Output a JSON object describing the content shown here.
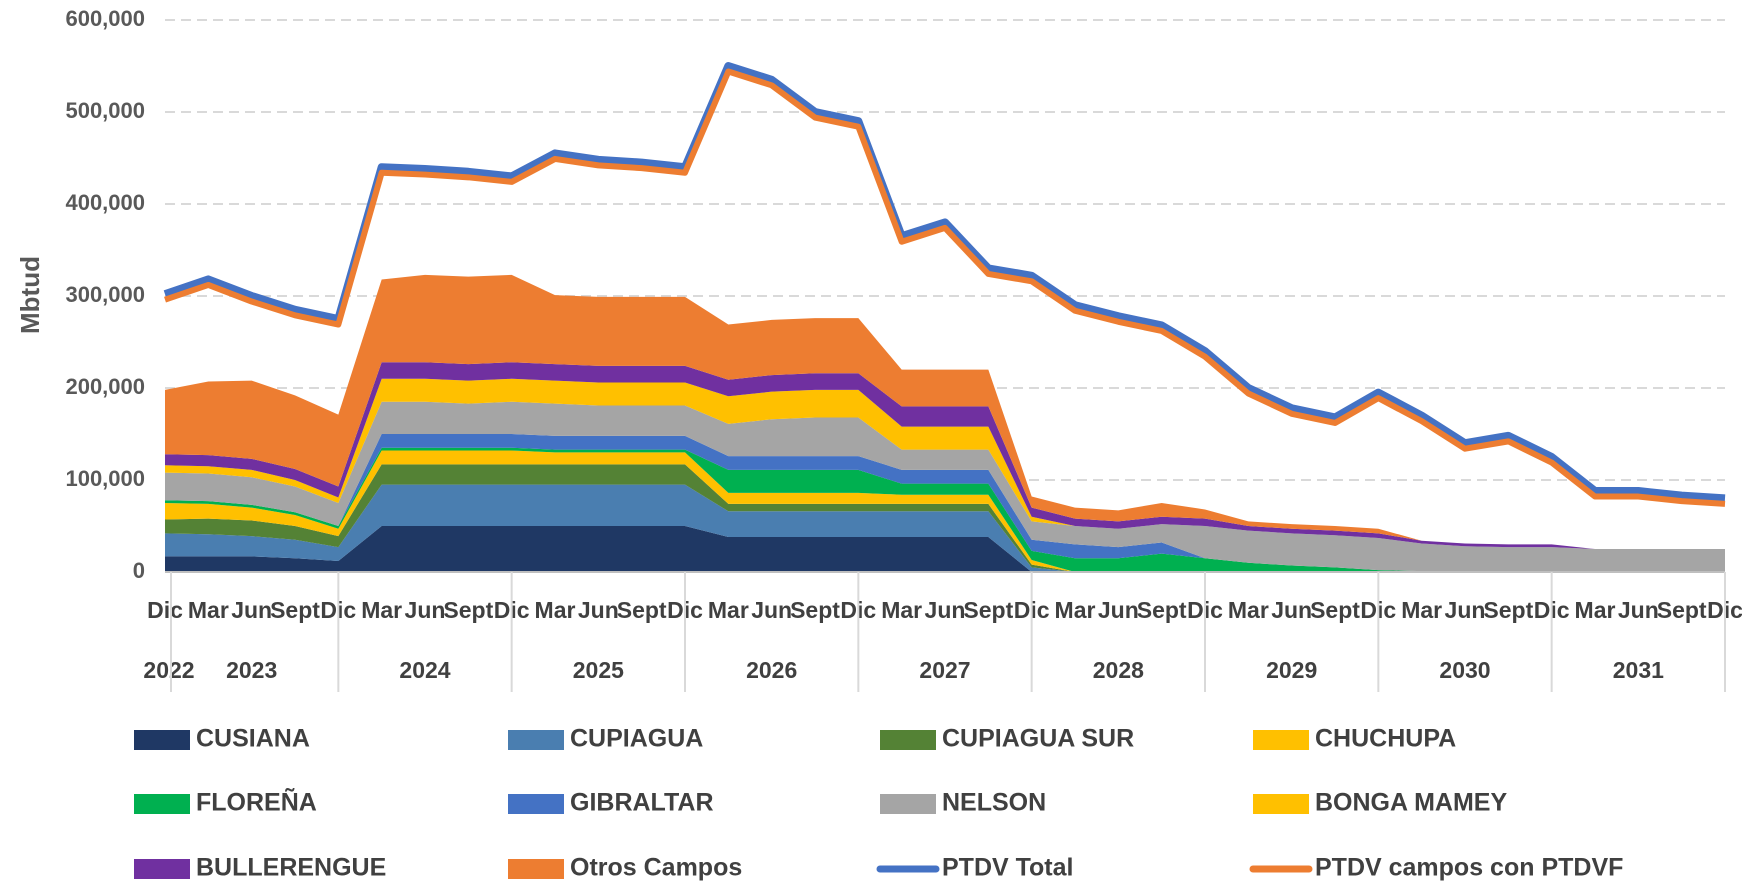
{
  "chart_data": {
    "type": "stacked_area",
    "y_label": "Mbtud",
    "categories": [
      "Dic",
      "Mar",
      "Jun",
      "Sept",
      "Dic",
      "Mar",
      "Jun",
      "Sept",
      "Dic",
      "Mar",
      "Jun",
      "Sept",
      "Dic",
      "Mar",
      "Jun",
      "Sept",
      "Dic",
      "Mar",
      "Jun",
      "Sept",
      "Dic",
      "Mar",
      "Jun",
      "Sept",
      "Dic",
      "Mar",
      "Jun",
      "Sept",
      "Dic",
      "Mar",
      "Jun",
      "Sept",
      "Dic",
      "Mar",
      "Jun",
      "Sept",
      "Dic"
    ],
    "years": [
      "2022",
      "2023",
      "2024",
      "2025",
      "2026",
      "2027",
      "2028",
      "2029",
      "2030",
      "2031"
    ],
    "ylim": [
      0,
      600000
    ],
    "yticks": [
      0,
      {
        "value": 100000,
        "label": "100,000"
      },
      {
        "value": 200000,
        "label": "200,000"
      },
      {
        "value": 300000,
        "label": "300,000"
      },
      {
        "value": 400000,
        "label": "400,000"
      },
      {
        "value": 500000,
        "label": "500,000"
      },
      {
        "value": 600000,
        "label": "600,000"
      }
    ],
    "grid": true,
    "series": [
      {
        "name": "CUSIANA",
        "color": "#1f3864",
        "values": [
          17000,
          17000,
          17000,
          15000,
          12000,
          50000,
          50000,
          50000,
          50000,
          50000,
          50000,
          50000,
          50000,
          38000,
          38000,
          38000,
          38000,
          38000,
          38000,
          38000,
          0,
          0,
          0,
          0,
          0,
          0,
          0,
          0,
          0,
          0,
          0,
          0,
          0,
          0,
          0,
          0,
          0
        ]
      },
      {
        "name": "CUPIAGUA",
        "color": "#4a7eb0",
        "values": [
          25000,
          24000,
          22000,
          20000,
          15000,
          45000,
          45000,
          45000,
          45000,
          45000,
          45000,
          45000,
          45000,
          28000,
          28000,
          28000,
          28000,
          28000,
          28000,
          28000,
          5000,
          0,
          0,
          0,
          0,
          0,
          0,
          0,
          0,
          0,
          0,
          0,
          0,
          0,
          0,
          0,
          0
        ]
      },
      {
        "name": "CUPIAGUA SUR",
        "color": "#548235",
        "values": [
          15000,
          17000,
          17000,
          15000,
          12000,
          22000,
          22000,
          22000,
          22000,
          22000,
          22000,
          22000,
          22000,
          8000,
          8000,
          8000,
          8000,
          8000,
          8000,
          8000,
          3000,
          0,
          0,
          0,
          0,
          0,
          0,
          0,
          0,
          0,
          0,
          0,
          0,
          0,
          0,
          0,
          0
        ]
      },
      {
        "name": "CHUCHUPA",
        "color": "#ffc000",
        "values": [
          18000,
          16000,
          14000,
          12000,
          8000,
          15000,
          15000,
          15000,
          15000,
          13000,
          13000,
          13000,
          13000,
          12000,
          12000,
          12000,
          12000,
          10000,
          10000,
          10000,
          5000,
          0,
          0,
          0,
          0,
          0,
          0,
          0,
          0,
          0,
          0,
          0,
          0,
          0,
          0,
          0,
          0
        ]
      },
      {
        "name": "FLOREÑA",
        "color": "#00b050",
        "values": [
          3000,
          3000,
          3000,
          3000,
          3000,
          3000,
          3000,
          3000,
          3000,
          3000,
          3000,
          3000,
          3000,
          25000,
          25000,
          25000,
          25000,
          12000,
          12000,
          12000,
          10000,
          15000,
          15000,
          20000,
          15000,
          10000,
          7000,
          5000,
          2000,
          1000,
          0,
          0,
          0,
          0,
          0,
          0,
          0
        ]
      },
      {
        "name": "GIBRALTAR",
        "color": "#4472c4",
        "values": [
          0,
          0,
          0,
          0,
          0,
          15000,
          15000,
          15000,
          15000,
          15000,
          15000,
          15000,
          15000,
          15000,
          15000,
          15000,
          15000,
          15000,
          15000,
          15000,
          12000,
          15000,
          12000,
          12000,
          0,
          0,
          0,
          0,
          0,
          0,
          0,
          0,
          0,
          0,
          0,
          0,
          0
        ]
      },
      {
        "name": "NELSON",
        "color": "#a5a5a5",
        "values": [
          30000,
          30000,
          30000,
          28000,
          25000,
          35000,
          35000,
          33000,
          35000,
          35000,
          33000,
          33000,
          33000,
          35000,
          40000,
          42000,
          42000,
          22000,
          22000,
          22000,
          20000,
          20000,
          20000,
          20000,
          35000,
          35000,
          35000,
          35000,
          35000,
          30000,
          28000,
          27000,
          27000,
          25000,
          25000,
          25000,
          25000
        ]
      },
      {
        "name": "BONGA MAMEY",
        "color": "#ffc000",
        "values": [
          8000,
          8000,
          8000,
          7000,
          6000,
          25000,
          25000,
          25000,
          25000,
          25000,
          25000,
          25000,
          25000,
          30000,
          30000,
          30000,
          30000,
          25000,
          25000,
          25000,
          5000,
          0,
          0,
          0,
          0,
          0,
          0,
          0,
          0,
          0,
          0,
          0,
          0,
          0,
          0,
          0,
          0
        ]
      },
      {
        "name": "BULLERENGUE",
        "color": "#7030a0",
        "values": [
          12000,
          12000,
          12000,
          12000,
          12000,
          18000,
          18000,
          18000,
          18000,
          18000,
          18000,
          18000,
          18000,
          18000,
          18000,
          18000,
          18000,
          22000,
          22000,
          22000,
          10000,
          8000,
          8000,
          8000,
          8000,
          5000,
          5000,
          5000,
          5000,
          3000,
          3000,
          3000,
          3000,
          0,
          0,
          0,
          0
        ]
      },
      {
        "name": "Otros Campos",
        "color": "#ed7d31",
        "values": [
          70000,
          80000,
          85000,
          80000,
          78000,
          90000,
          95000,
          95000,
          95000,
          75000,
          75000,
          75000,
          75000,
          60000,
          60000,
          60000,
          60000,
          40000,
          40000,
          40000,
          12000,
          12000,
          12000,
          15000,
          10000,
          5000,
          5000,
          5000,
          5000,
          0,
          0,
          0,
          0,
          0,
          0,
          0,
          0
        ]
      },
      {
        "name": "PTDV Total",
        "color": "#4472c4",
        "kind": "line",
        "values": [
          302000,
          318000,
          300000,
          285000,
          275000,
          440000,
          438000,
          435000,
          430000,
          455000,
          448000,
          445000,
          440000,
          550000,
          535000,
          500000,
          490000,
          365000,
          380000,
          330000,
          322000,
          290000,
          278000,
          268000,
          240000,
          200000,
          178000,
          168000,
          195000,
          170000,
          140000,
          148000,
          125000,
          88000,
          88000,
          83000,
          80000
        ]
      },
      {
        "name": "PTDV campos con PTDVF",
        "color": "#ed7d31",
        "kind": "line",
        "values": [
          296000,
          312000,
          294000,
          279000,
          269000,
          434000,
          432000,
          429000,
          424000,
          449000,
          442000,
          439000,
          434000,
          544000,
          529000,
          494000,
          484000,
          359000,
          374000,
          324000,
          316000,
          284000,
          272000,
          262000,
          234000,
          194000,
          172000,
          162000,
          189000,
          164000,
          134000,
          142000,
          119000,
          82000,
          82000,
          77000,
          74000
        ]
      }
    ]
  }
}
